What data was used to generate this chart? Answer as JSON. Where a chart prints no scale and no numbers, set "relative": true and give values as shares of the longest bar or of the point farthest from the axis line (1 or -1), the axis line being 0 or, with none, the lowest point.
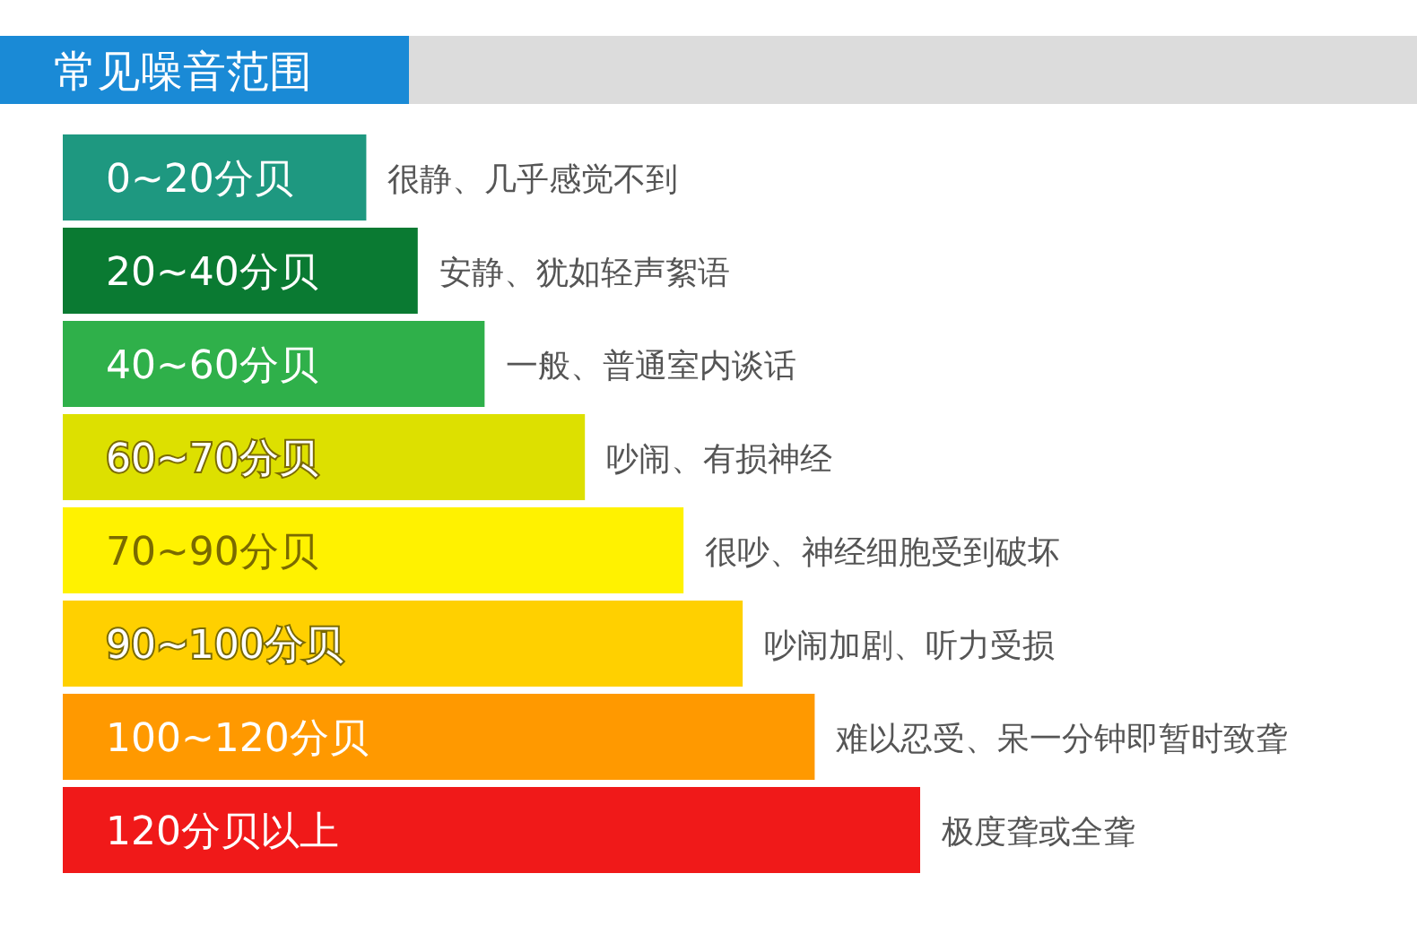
{
  "chart_data": {
    "type": "bar",
    "orientation": "horizontal",
    "relative": true,
    "title": "常见噪音范围",
    "categories": [
      "0~20分贝",
      "20~40分贝",
      "40~60分贝",
      "60~70分贝",
      "70~90分贝",
      "90~100分贝",
      "100~120分贝",
      "120分贝以上"
    ],
    "values": [
      0.354,
      0.414,
      0.492,
      0.609,
      0.724,
      0.793,
      0.877,
      1
    ],
    "colors": [
      "#1e9880",
      "#0a7a32",
      "#2fb04a",
      "#dde000",
      "#fff200",
      "#ffd000",
      "#ff9900",
      "#f01919"
    ],
    "annotations": [
      {
        "text": "很静、几乎感觉不到",
        "x": 0.354,
        "y": "0~20分贝"
      },
      {
        "text": "安静、犹如轻声絮语",
        "x": 0.414,
        "y": "20~40分贝"
      },
      {
        "text": "一般、普通室内谈话",
        "x": 0.492,
        "y": "40~60分贝"
      },
      {
        "text": "吵闹、有损神经",
        "x": 0.609,
        "y": "60~70分贝"
      },
      {
        "text": "很吵、神经细胞受到破坏",
        "x": 0.724,
        "y": "70~90分贝"
      },
      {
        "text": "吵闹加剧、听力受损",
        "x": 0.793,
        "y": "90~100分贝"
      },
      {
        "text": "难以忍受、呆一分钟即暂时致聋",
        "x": 0.877,
        "y": "100~120分贝"
      },
      {
        "text": "极度聋或全聋",
        "x": 1,
        "y": "120分贝以上"
      }
    ]
  }
}
